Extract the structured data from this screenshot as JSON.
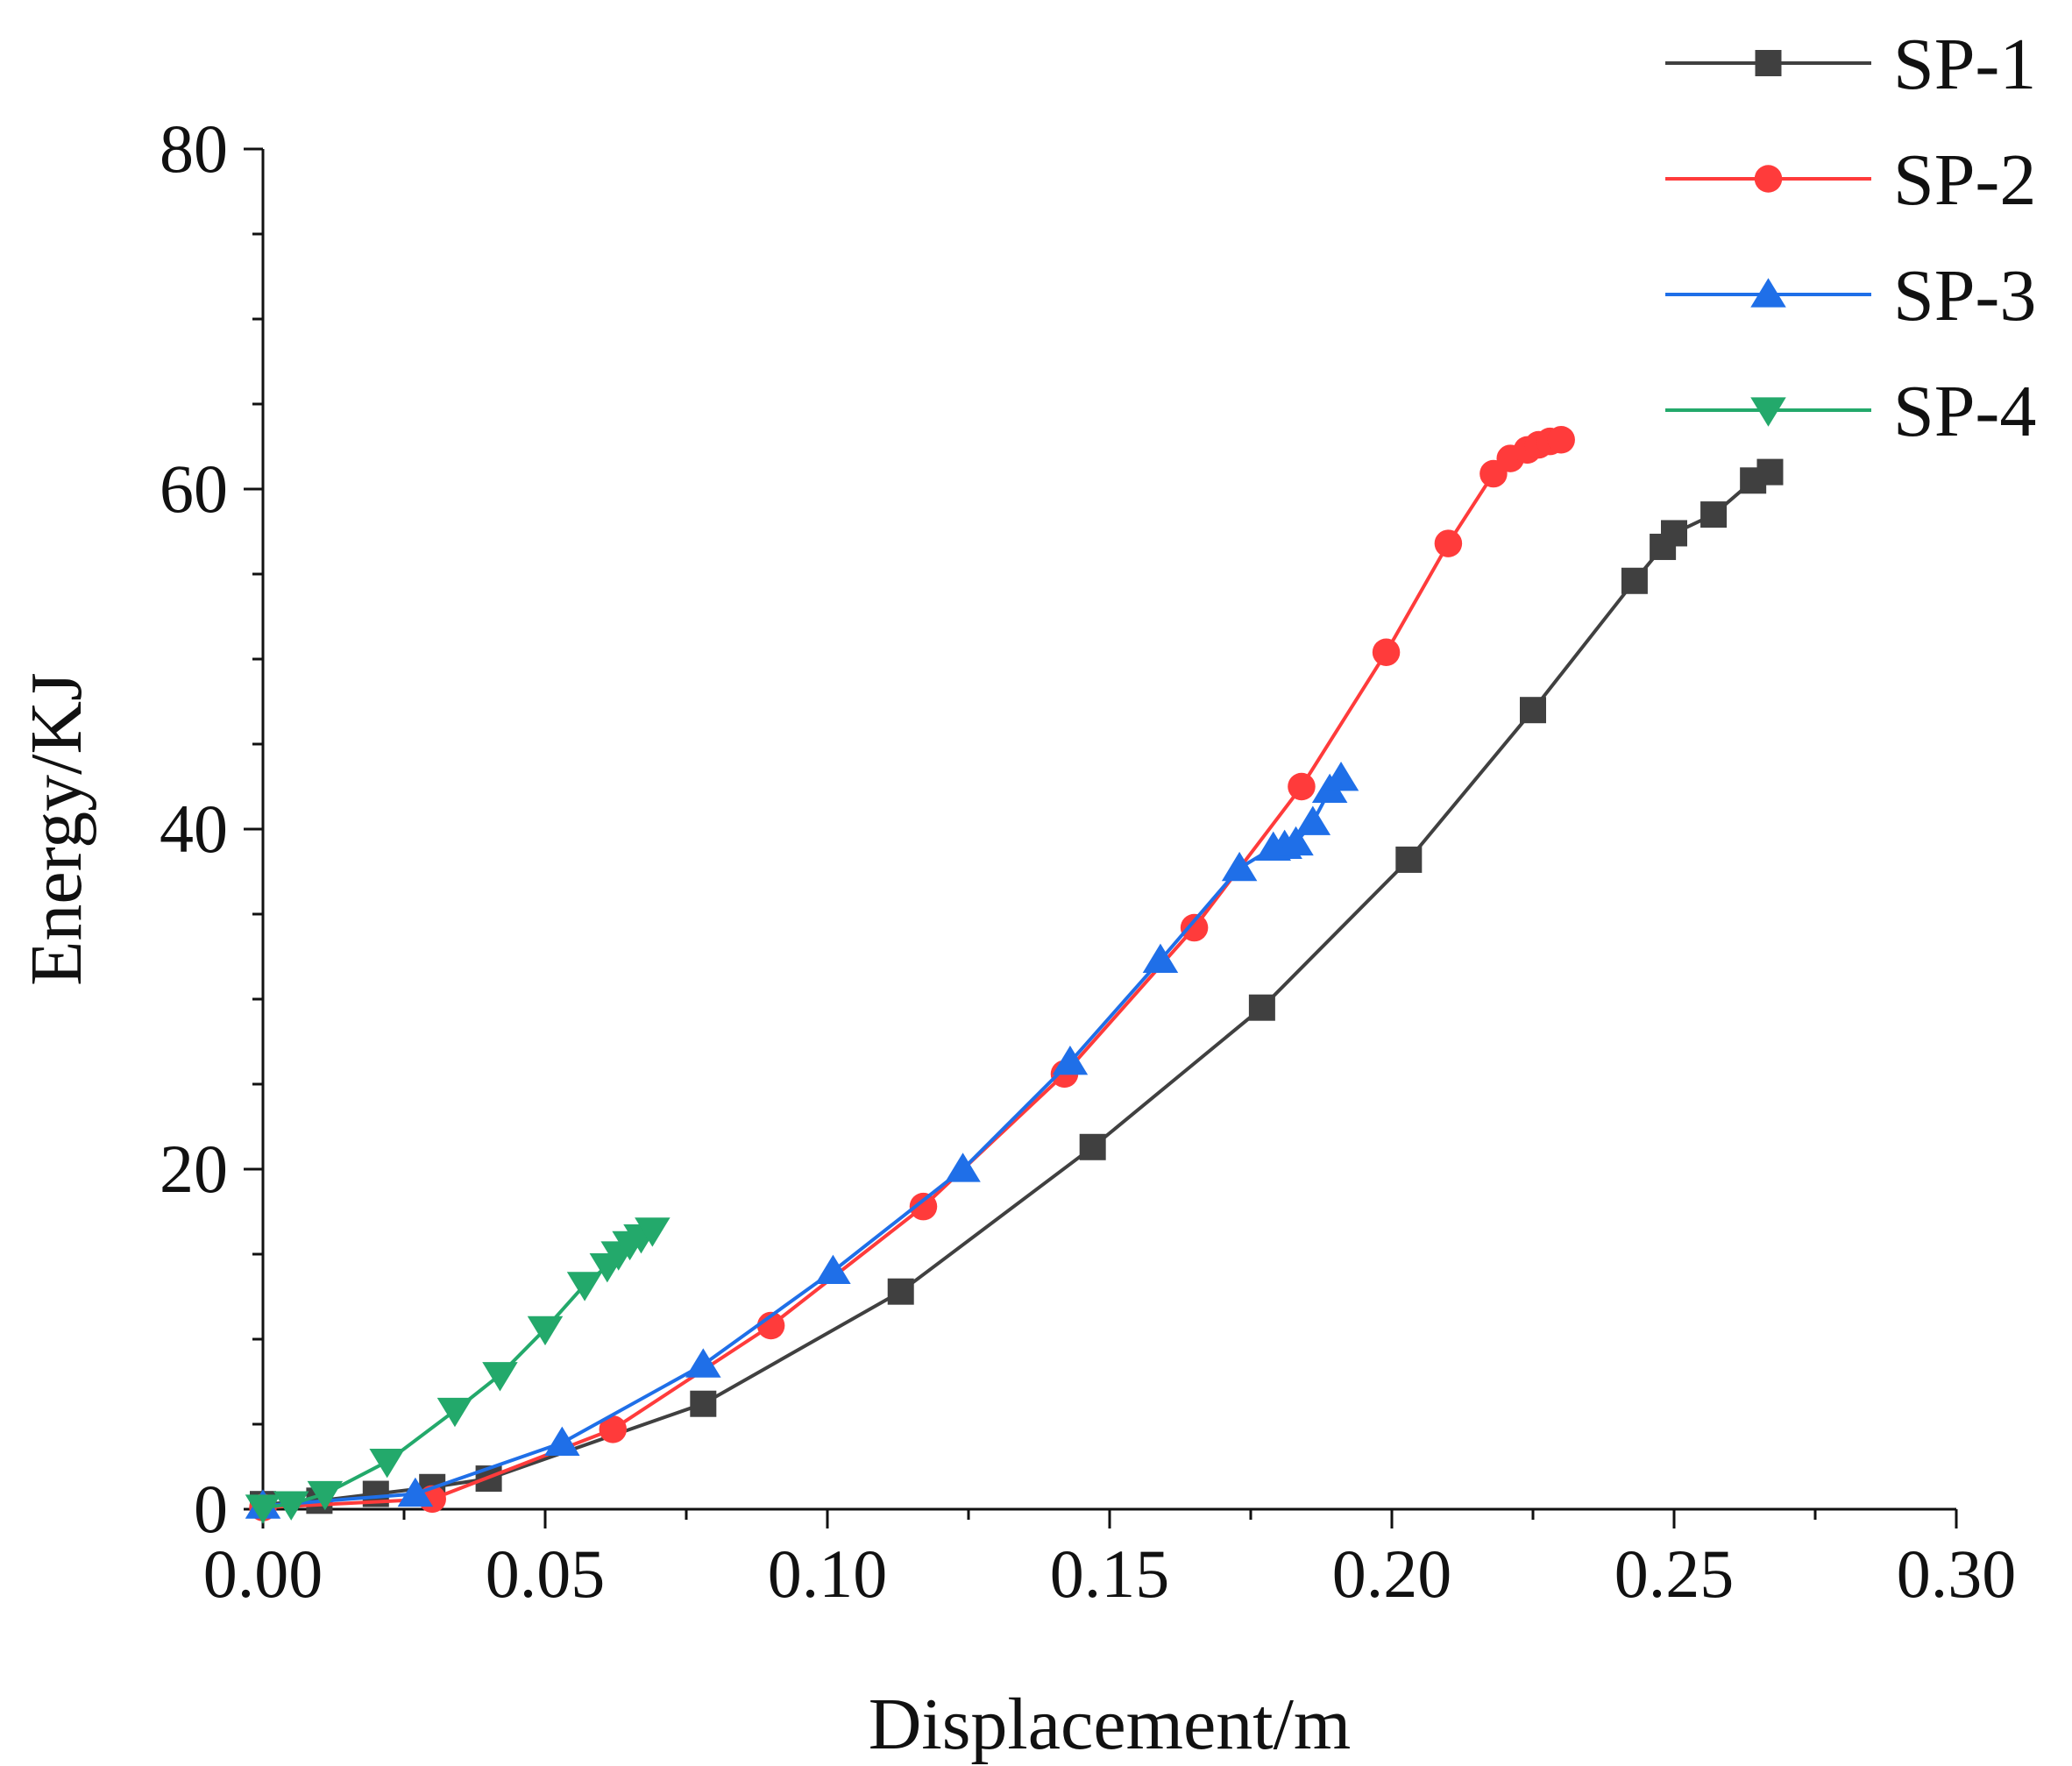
{
  "chart_data": {
    "type": "line",
    "title": "",
    "xlabel": "Displacement/m",
    "ylabel": "Energy/KJ",
    "xlim": [
      0,
      0.3
    ],
    "ylim": [
      0,
      80
    ],
    "x_ticks": [
      "0.00",
      "0.05",
      "0.10",
      "0.15",
      "0.20",
      "0.25",
      "0.30"
    ],
    "y_ticks": [
      "0",
      "20",
      "40",
      "60",
      "80"
    ],
    "grid": false,
    "legend_position": "top-right",
    "series": [
      {
        "name": "SP-1",
        "color": "#404040",
        "marker": "square",
        "x": [
          0.0,
          0.01,
          0.02,
          0.03,
          0.04,
          0.078,
          0.113,
          0.147,
          0.177,
          0.203,
          0.225,
          0.243,
          0.248,
          0.25,
          0.257,
          0.264,
          0.267
        ],
        "y": [
          0.3,
          0.5,
          0.9,
          1.3,
          1.8,
          6.2,
          12.8,
          21.3,
          29.5,
          38.2,
          47.0,
          54.6,
          56.6,
          57.4,
          58.5,
          60.5,
          61.0
        ]
      },
      {
        "name": "SP-2",
        "color": "#ff3b3b",
        "marker": "circle",
        "x": [
          0.0,
          0.03,
          0.062,
          0.09,
          0.117,
          0.142,
          0.165,
          0.184,
          0.199,
          0.21,
          0.218,
          0.221,
          0.224,
          0.226,
          0.228,
          0.23
        ],
        "y": [
          0.1,
          0.6,
          4.7,
          10.8,
          17.8,
          25.6,
          34.2,
          42.5,
          50.4,
          56.8,
          60.9,
          61.8,
          62.3,
          62.6,
          62.8,
          62.9
        ]
      },
      {
        "name": "SP-3",
        "color": "#1f6fe8",
        "marker": "triangle-up",
        "x": [
          0.0,
          0.027,
          0.053,
          0.078,
          0.101,
          0.124,
          0.143,
          0.159,
          0.173,
          0.179,
          0.181,
          0.183,
          0.186,
          0.189,
          0.191
        ],
        "y": [
          0.2,
          0.9,
          3.9,
          8.5,
          14.0,
          20.0,
          26.3,
          32.3,
          37.7,
          38.9,
          39.0,
          39.2,
          40.4,
          42.3,
          43.0
        ]
      },
      {
        "name": "SP-4",
        "color": "#23a96b",
        "marker": "triangle-down",
        "x": [
          0.0,
          0.005,
          0.011,
          0.022,
          0.034,
          0.042,
          0.05,
          0.057,
          0.061,
          0.063,
          0.065,
          0.067,
          0.069
        ],
        "y": [
          0.1,
          0.3,
          0.9,
          2.8,
          5.8,
          7.9,
          10.6,
          13.2,
          14.3,
          15.0,
          15.6,
          16.0,
          16.4
        ]
      }
    ]
  }
}
